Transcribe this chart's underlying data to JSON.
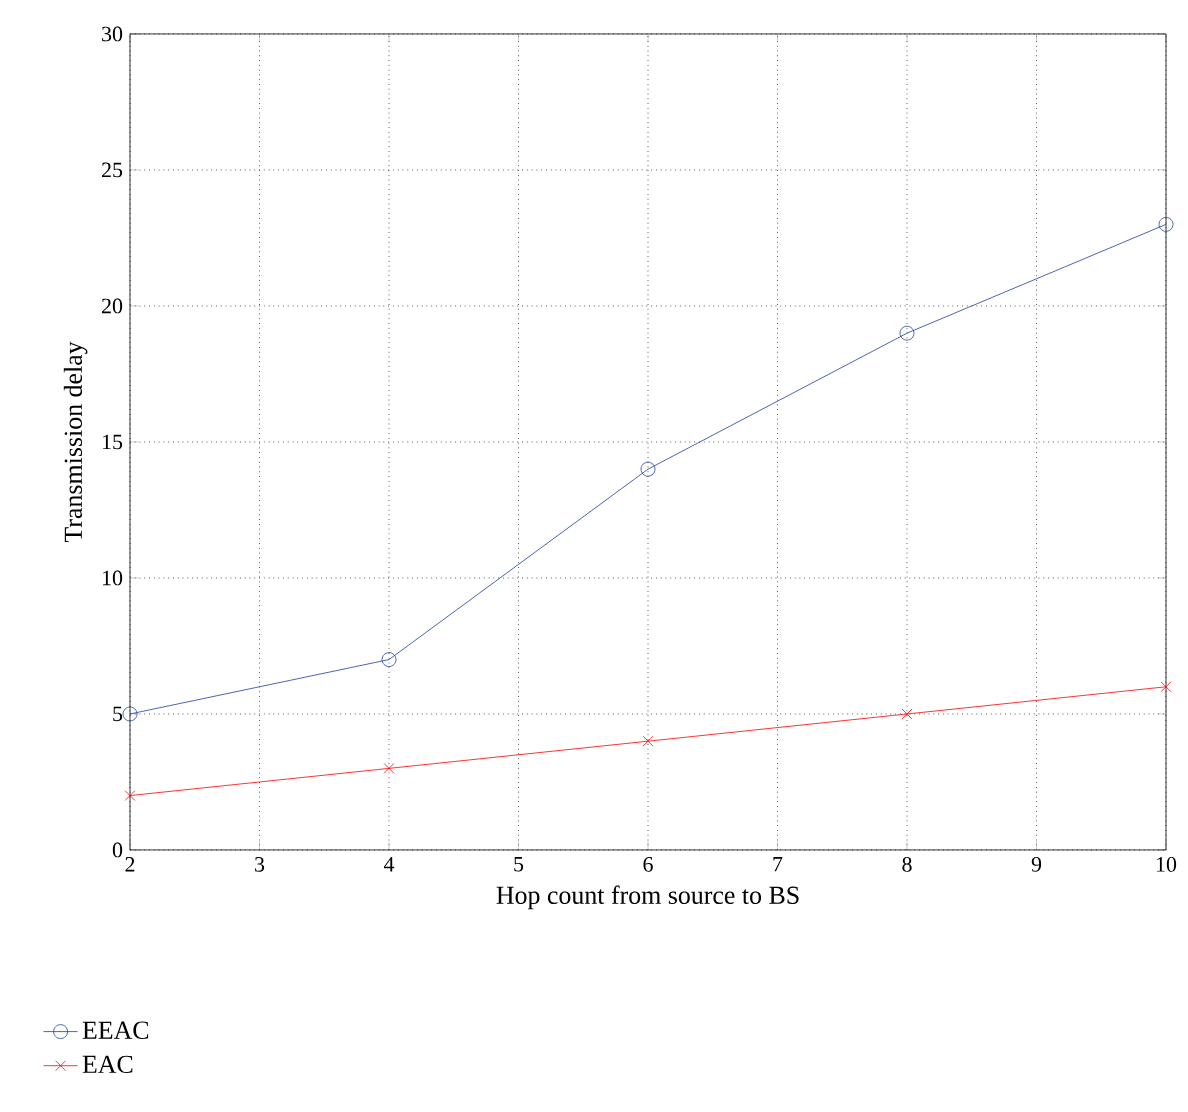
{
  "chart_data": {
    "type": "line",
    "xlabel": "Hop count from source to BS",
    "ylabel": "Transmission delay",
    "x": [
      2,
      4,
      6,
      8,
      10
    ],
    "xlim": [
      2,
      10
    ],
    "ylim": [
      0,
      30
    ],
    "xticks": [
      2,
      3,
      4,
      5,
      6,
      7,
      8,
      9,
      10
    ],
    "yticks": [
      0,
      5,
      10,
      15,
      20,
      25,
      30
    ],
    "grid": true,
    "legend": "bottom left",
    "series": [
      {
        "name": "EEAC",
        "color": "#1f3d9c",
        "marker": "circle",
        "values": [
          5,
          7,
          14,
          19,
          23
        ]
      },
      {
        "name": "EAC",
        "color": "#ff0000",
        "marker": "cross",
        "values": [
          2,
          3,
          4,
          5,
          6
        ]
      }
    ]
  }
}
